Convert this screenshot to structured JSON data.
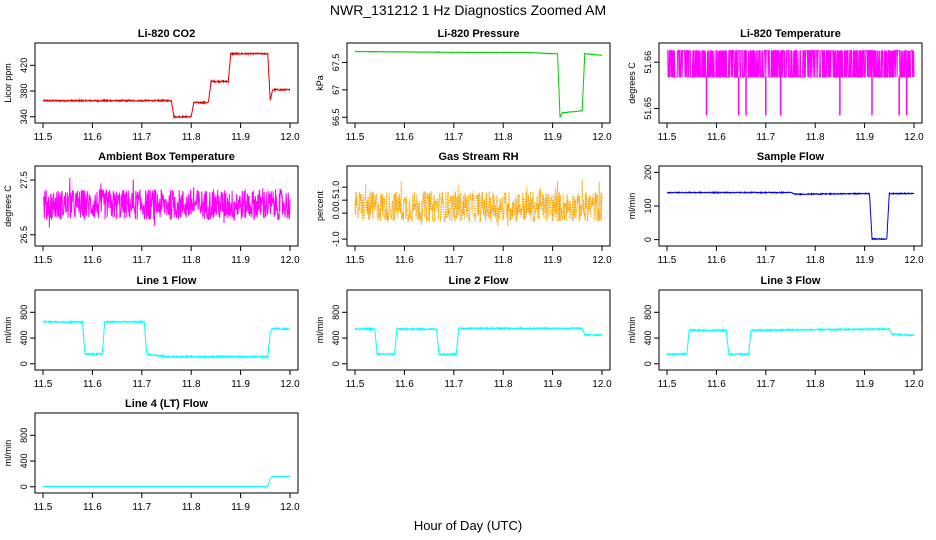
{
  "page": {
    "title": "NWR_131212  1 Hz Diagnostics Zoomed AM",
    "xlabel": "Hour of Day (UTC)"
  },
  "chart_data": [
    {
      "type": "line",
      "title": "Li-820 CO2",
      "ylabel": "Licor ppm",
      "color": "#e00000",
      "xlim": [
        11.5,
        12.0
      ],
      "ylim": [
        335,
        450
      ],
      "yticks": [
        340,
        380,
        420
      ],
      "noise": 1.2,
      "segments": [
        [
          11.5,
          365
        ],
        [
          11.76,
          365
        ],
        [
          11.765,
          340
        ],
        [
          11.8,
          340
        ],
        [
          11.805,
          362
        ],
        [
          11.835,
          362
        ],
        [
          11.84,
          395
        ],
        [
          11.875,
          395
        ],
        [
          11.88,
          438
        ],
        [
          11.955,
          438
        ],
        [
          11.96,
          365
        ],
        [
          11.965,
          382
        ],
        [
          12.0,
          382
        ]
      ]
    },
    {
      "type": "line",
      "title": "Li-820 Pressure",
      "ylabel": "kPa",
      "color": "#00cc00",
      "xlim": [
        11.5,
        12.0
      ],
      "ylim": [
        66.45,
        67.8
      ],
      "yticks": [
        66.5,
        67.0,
        67.5
      ],
      "yticklabels": [
        "66.5",
        "67",
        "67.5"
      ],
      "noise": 0.005,
      "segments": [
        [
          11.5,
          67.7
        ],
        [
          11.75,
          67.68
        ],
        [
          11.85,
          67.68
        ],
        [
          11.9,
          67.66
        ],
        [
          11.91,
          67.66
        ],
        [
          11.915,
          66.5
        ],
        [
          11.92,
          66.58
        ],
        [
          11.96,
          66.62
        ],
        [
          11.965,
          67.66
        ],
        [
          12.0,
          67.63
        ]
      ]
    },
    {
      "type": "line",
      "title": "Li-820 Temperature",
      "ylabel": "degrees C",
      "color": "#ff00ff",
      "xlim": [
        11.5,
        12.0
      ],
      "ylim": [
        51.6475,
        51.6635
      ],
      "yticks": [
        51.65,
        51.66
      ],
      "yticklabels": [
        "51.65",
        "51.66"
      ],
      "mode": "bistable",
      "levels": [
        51.6568,
        51.6625
      ],
      "dips": [
        11.58,
        11.645,
        11.66,
        11.7,
        11.73,
        11.85,
        11.915,
        11.97,
        11.985
      ],
      "dipValue": 51.6485
    },
    {
      "type": "line",
      "title": "Ambient Box Temperature",
      "ylabel": "degrees C",
      "color": "#ff00ff",
      "xlim": [
        11.5,
        12.0
      ],
      "ylim": [
        26.35,
        27.7
      ],
      "yticks": [
        26.5,
        27.5
      ],
      "yticklabels": [
        "26.5",
        "27.5"
      ],
      "noise": 0.28,
      "base": 27.05
    },
    {
      "type": "line",
      "title": "Gas Stream RH",
      "ylabel": "percent",
      "color": "#ffa500",
      "style": "dotted",
      "xlim": [
        11.5,
        12.0
      ],
      "ylim": [
        -1.15,
        1.7
      ],
      "yticks": [
        -1.0,
        0.0,
        0.5,
        1.0
      ],
      "yticklabels": [
        "-1.0",
        "0.0",
        "0.5",
        "1.0"
      ],
      "noise": 0.6,
      "base": 0.25
    },
    {
      "type": "line",
      "title": "Sample Flow",
      "ylabel": "ml/min",
      "color": "#0000dd",
      "xlim": [
        11.5,
        12.0
      ],
      "ylim": [
        -10,
        210
      ],
      "yticks": [
        0,
        100,
        200
      ],
      "noise": 1.5,
      "segments": [
        [
          11.5,
          140
        ],
        [
          11.75,
          140
        ],
        [
          11.76,
          135
        ],
        [
          11.905,
          137
        ],
        [
          11.91,
          137
        ],
        [
          11.915,
          2
        ],
        [
          11.945,
          2
        ],
        [
          11.95,
          137
        ],
        [
          12.0,
          137
        ]
      ]
    },
    {
      "type": "line",
      "title": "Line 1 Flow",
      "ylabel": "ml/min",
      "color": "#00ffff",
      "xlim": [
        11.5,
        12.0
      ],
      "ylim": [
        -50,
        1100
      ],
      "yticks": [
        0,
        400,
        800
      ],
      "noise": 12,
      "segments": [
        [
          11.5,
          650
        ],
        [
          11.58,
          650
        ],
        [
          11.585,
          150
        ],
        [
          11.62,
          150
        ],
        [
          11.625,
          650
        ],
        [
          11.705,
          650
        ],
        [
          11.71,
          150
        ],
        [
          11.75,
          110
        ],
        [
          11.955,
          110
        ],
        [
          11.96,
          480
        ],
        [
          11.965,
          550
        ],
        [
          12.0,
          540
        ]
      ]
    },
    {
      "type": "line",
      "title": "Line 2 Flow",
      "ylabel": "ml/min",
      "color": "#00ffff",
      "xlim": [
        11.5,
        12.0
      ],
      "ylim": [
        -50,
        1100
      ],
      "yticks": [
        0,
        400,
        800
      ],
      "noise": 12,
      "segments": [
        [
          11.5,
          540
        ],
        [
          11.54,
          540
        ],
        [
          11.545,
          150
        ],
        [
          11.58,
          150
        ],
        [
          11.585,
          540
        ],
        [
          11.665,
          540
        ],
        [
          11.67,
          150
        ],
        [
          11.705,
          150
        ],
        [
          11.71,
          550
        ],
        [
          11.96,
          550
        ],
        [
          11.965,
          450
        ],
        [
          12.0,
          450
        ]
      ]
    },
    {
      "type": "line",
      "title": "Line 3 Flow",
      "ylabel": "ml/min",
      "color": "#00ffff",
      "xlim": [
        11.5,
        12.0
      ],
      "ylim": [
        -50,
        1100
      ],
      "yticks": [
        0,
        400,
        800
      ],
      "noise": 12,
      "segments": [
        [
          11.5,
          150
        ],
        [
          11.54,
          150
        ],
        [
          11.545,
          520
        ],
        [
          11.62,
          520
        ],
        [
          11.625,
          150
        ],
        [
          11.665,
          150
        ],
        [
          11.67,
          520
        ],
        [
          11.95,
          540
        ],
        [
          11.955,
          460
        ],
        [
          12.0,
          440
        ]
      ]
    },
    {
      "type": "line",
      "title": "Line 4 (LT) Flow",
      "ylabel": "ml/min",
      "color": "#00ffff",
      "xlim": [
        11.5,
        12.0
      ],
      "ylim": [
        -50,
        1100
      ],
      "yticks": [
        0,
        400,
        800
      ],
      "noise": 0,
      "segments": [
        [
          11.5,
          5
        ],
        [
          11.955,
          5
        ],
        [
          11.96,
          130
        ],
        [
          11.965,
          160
        ],
        [
          12.0,
          160
        ]
      ]
    }
  ],
  "xaxis": {
    "ticks": [
      11.5,
      11.6,
      11.7,
      11.8,
      11.9,
      12.0
    ],
    "ticklabels": [
      "11.5",
      "11.6",
      "11.7",
      "11.8",
      "11.9",
      "12.0"
    ]
  }
}
